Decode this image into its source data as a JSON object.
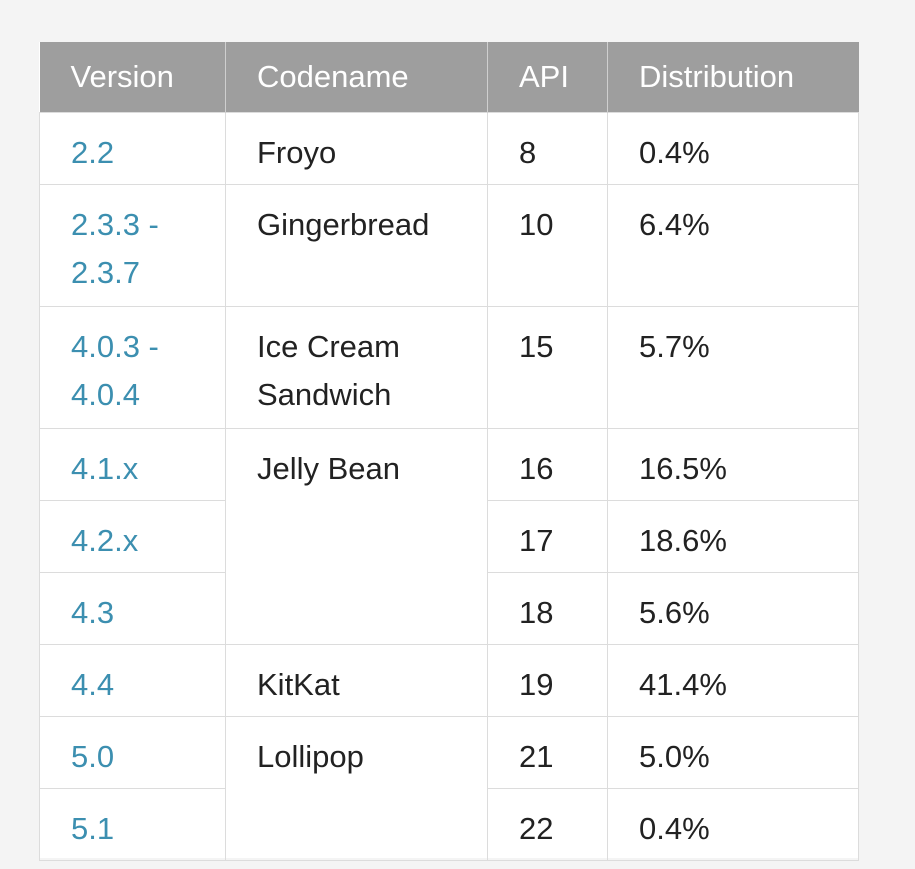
{
  "table": {
    "headers": [
      "Version",
      "Codename",
      "API",
      "Distribution"
    ],
    "rows": [
      {
        "version": [
          "2.2"
        ],
        "codename": [
          "Froyo"
        ],
        "api": "8",
        "distribution": "0.4%"
      },
      {
        "version": [
          "2.3.3 -",
          "2.3.7"
        ],
        "codename": [
          "Gingerbread"
        ],
        "api": "10",
        "distribution": "6.4%"
      },
      {
        "version": [
          "4.0.3 -",
          "4.0.4"
        ],
        "codename": [
          "Ice Cream",
          "Sandwich"
        ],
        "api": "15",
        "distribution": "5.7%"
      },
      {
        "version": [
          "4.1.x"
        ],
        "codename": [
          "Jelly Bean"
        ],
        "api": "16",
        "distribution": "16.5%"
      },
      {
        "version": [
          "4.2.x"
        ],
        "api": "17",
        "distribution": "18.6%"
      },
      {
        "version": [
          "4.3"
        ],
        "api": "18",
        "distribution": "5.6%"
      },
      {
        "version": [
          "4.4"
        ],
        "codename": [
          "KitKat"
        ],
        "api": "19",
        "distribution": "41.4%"
      },
      {
        "version": [
          "5.0"
        ],
        "codename": [
          "Lollipop"
        ],
        "api": "21",
        "distribution": "5.0%"
      },
      {
        "version": [
          "5.1"
        ],
        "api": "22",
        "distribution": "0.4%"
      }
    ]
  },
  "colors": {
    "header_bg": "#9e9e9e",
    "header_text": "#ffffff",
    "version_link": "#3c8fb0",
    "body_text": "#222222",
    "grid": "#dcdcdc",
    "page_bg": "#f4f4f4"
  }
}
